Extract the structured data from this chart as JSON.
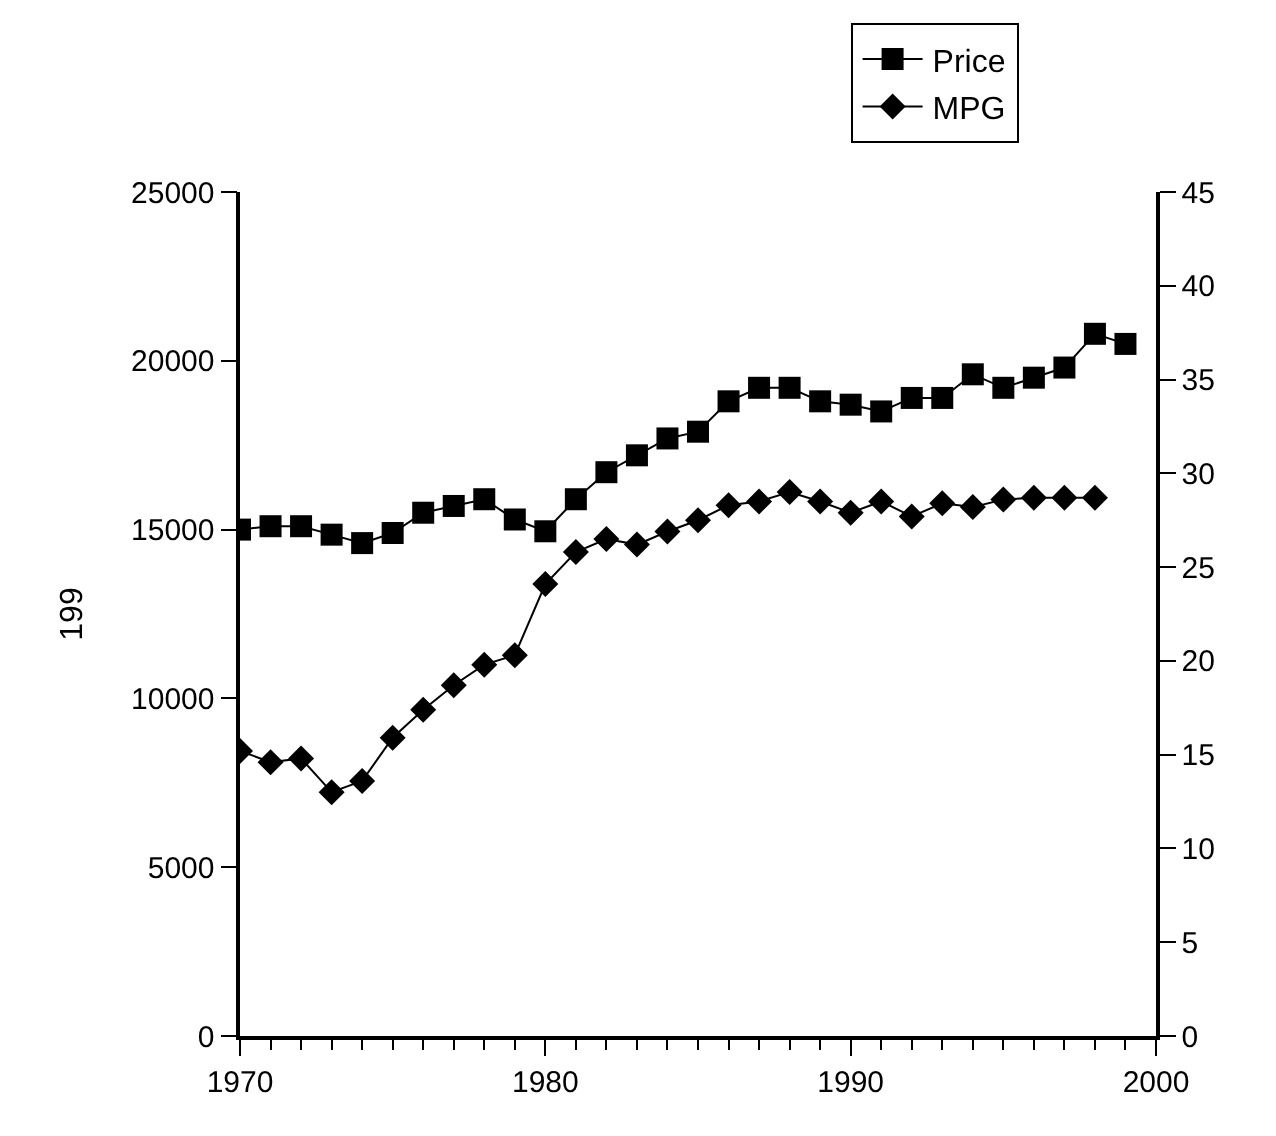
{
  "chart_data": {
    "type": "line",
    "ylabel": "199",
    "x": [
      1970,
      1971,
      1972,
      1973,
      1974,
      1975,
      1976,
      1977,
      1978,
      1979,
      1980,
      1981,
      1982,
      1983,
      1984,
      1985,
      1986,
      1987,
      1988,
      1989,
      1990,
      1991,
      1992,
      1993,
      1994,
      1995,
      1996,
      1997,
      1998,
      1999
    ],
    "series": [
      {
        "name": "Price",
        "color": "#000000",
        "marker": "square",
        "values": [
          15000,
          15100,
          15100,
          14850,
          14600,
          14900,
          15500,
          15700,
          15900,
          15300,
          14950,
          15900,
          16700,
          17200,
          17700,
          17900,
          18800,
          19200,
          19200,
          18800,
          18700,
          18500,
          18900,
          18900,
          19600,
          19200,
          19500,
          19800,
          20800,
          20500
        ]
      },
      {
        "name": "MPG",
        "color": "#000000",
        "marker": "diamond",
        "axis": "y2",
        "values": [
          15.2,
          14.6,
          14.8,
          13.0,
          13.6,
          15.9,
          17.4,
          18.7,
          19.8,
          20.3,
          24.1,
          25.8,
          26.5,
          26.2,
          26.9,
          27.5,
          28.3,
          28.5,
          29.0,
          28.5,
          27.9,
          28.5,
          27.7,
          28.4,
          28.2,
          28.6,
          28.7,
          28.7,
          28.7,
          null
        ]
      }
    ],
    "xlim": [
      1970,
      2000
    ],
    "xticks": [
      1970,
      1980,
      1990,
      2000
    ],
    "ylim": [
      0,
      25000
    ],
    "yticks": [
      0,
      5000,
      10000,
      15000,
      20000,
      25000
    ],
    "y2lim": [
      0,
      45
    ],
    "y2ticks": [
      0,
      5,
      10,
      15,
      20,
      25,
      30,
      35,
      40,
      45
    ],
    "grid": false,
    "legend": "top right",
    "line_style": "solid"
  }
}
